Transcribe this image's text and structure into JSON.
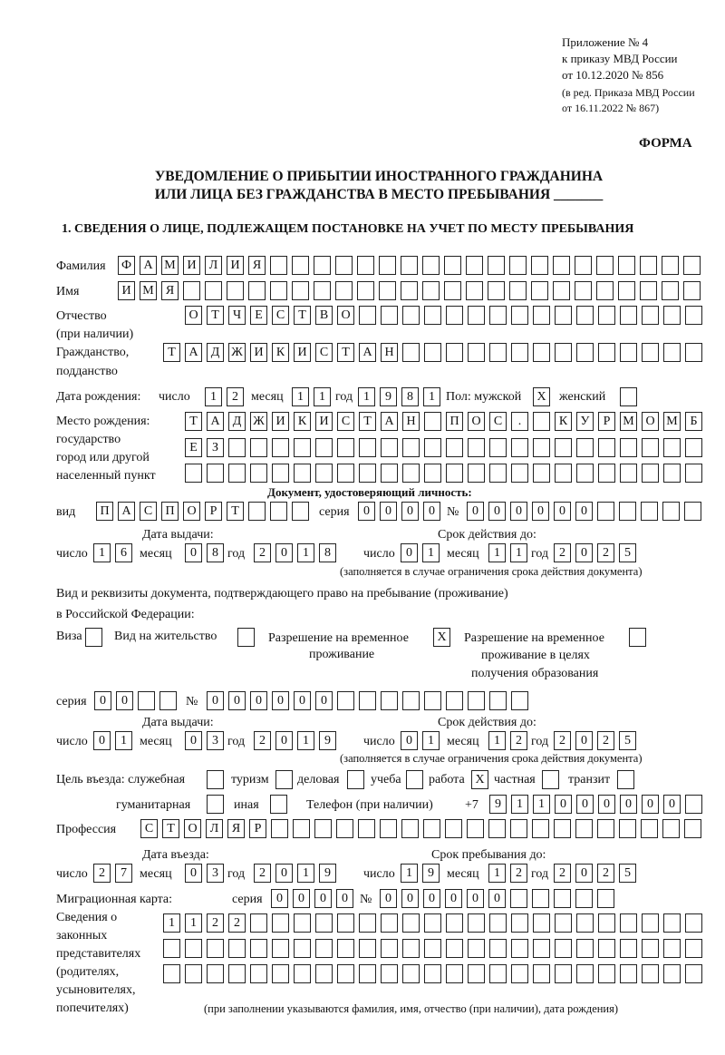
{
  "header": {
    "line1": "Приложение № 4",
    "line2": "к приказу МВД России",
    "line3": "от 10.12.2020 № 856",
    "line4": "(в ред. Приказа МВД России",
    "line5": "от 16.11.2022 № 867)",
    "forma": "ФОРМА"
  },
  "title": {
    "line1": "УВЕДОМЛЕНИЕ О ПРИБЫТИИ ИНОСТРАННОГО ГРАЖДАНИНА",
    "line2": "ИЛИ ЛИЦА БЕЗ ГРАЖДАНСТВА В МЕСТО ПРЕБЫВАНИЯ _______"
  },
  "section1": "1. СВЕДЕНИЯ О ЛИЦЕ, ПОДЛЕЖАЩЕМ ПОСТАНОВКЕ НА УЧЕТ ПО МЕСТУ ПРЕБЫВАНИЯ",
  "labels": {
    "surname": "Фамилия",
    "name": "Имя",
    "patronymic": "Отчество",
    "patronymic2": "(при наличии)",
    "citizenship": "Гражданство,",
    "citizenship2": "подданство",
    "birth_date": "Дата рождения:",
    "day": "число",
    "month": "месяц",
    "year": "год",
    "sex": "Пол: мужской",
    "female": "женский",
    "birth_place": "Место рождения:",
    "bp2": "государство",
    "bp3": "город или другой",
    "bp4": "населенный пункт",
    "id_doc": "Документ, удостоверяющий личность:",
    "kind": "вид",
    "series": "серия",
    "number": "№",
    "issue_date": "Дата выдачи:",
    "valid_until": "Срок действия до:",
    "valid_note": "(заполняется в случае ограничения срока действия документа)",
    "right_doc": "Вид и реквизиты документа, подтверждающего право на пребывание (проживание)",
    "right_doc2": "в Российской Федерации:",
    "visa": "Виза",
    "residence": "Вид на жительство",
    "trp": "Разрешение на временное",
    "trp2": "проживание",
    "trp_edu": "Разрешение на временное",
    "trp_edu2": "проживание в целях",
    "trp_edu3": "получения образования",
    "purpose": "Цель въезда: служебная",
    "tourism": "туризм",
    "business": "деловая",
    "study": "учеба",
    "work": "работа",
    "private": "частная",
    "transit": "транзит",
    "humanitarian": "гуманитарная",
    "other": "иная",
    "phone": "Телефон (при наличии)",
    "phone_prefix": "+7",
    "profession": "Профессия",
    "entry_date": "Дата въезда:",
    "stay_until": "Срок пребывания до:",
    "migration_card": "Миграционная карта:",
    "legal_rep": "Сведения о",
    "legal_rep2": "законных",
    "legal_rep3": "представителях",
    "legal_rep4": "(родителях,",
    "legal_rep5": "усыновителях,",
    "legal_rep6": "попечителях)",
    "legal_note": "(при заполнении указываются фамилия, имя, отчество (при наличии), дата рождения)"
  },
  "values": {
    "surname": "ФАМИЛИЯ",
    "name": "ИМЯ",
    "patronymic": "ОТЧЕСТВО",
    "citizenship": "ТАДЖИКИСТАН",
    "birth_day": "12",
    "birth_month": "11",
    "birth_year": "1981",
    "male": "X",
    "female": "",
    "birth_place1": "ТАДЖИКИСТАН ПОС. КУРМОМБ",
    "birth_place2": "ЕЗ",
    "birth_place3": "",
    "doc_kind": "ПАСПОРТ",
    "doc_series": "0000",
    "doc_number": "000000",
    "doc_issue_day": "16",
    "doc_issue_month": "08",
    "doc_issue_year": "2018",
    "doc_valid_day": "01",
    "doc_valid_month": "11",
    "doc_valid_year": "2025",
    "visa": "",
    "residence": "",
    "trp": "X",
    "trp_edu": "",
    "right_series": "00",
    "right_number": "000000",
    "right_issue_day": "01",
    "right_issue_month": "03",
    "right_issue_year": "2019",
    "right_valid_day": "01",
    "right_valid_month": "12",
    "right_valid_year": "2025",
    "p_official": "",
    "p_tourism": "",
    "p_business": "",
    "p_study": "",
    "p_work": "X",
    "p_private": "",
    "p_transit": "",
    "p_humanitarian": "",
    "p_other": "",
    "phone": "911000000",
    "profession": "СТОЛЯР",
    "entry_day": "27",
    "entry_month": "03",
    "entry_year": "2019",
    "stay_day": "19",
    "stay_month": "12",
    "stay_year": "2025",
    "mc_series": "0000",
    "mc_number": "000000",
    "rep1": "1122",
    "rep2": "",
    "rep3": ""
  }
}
